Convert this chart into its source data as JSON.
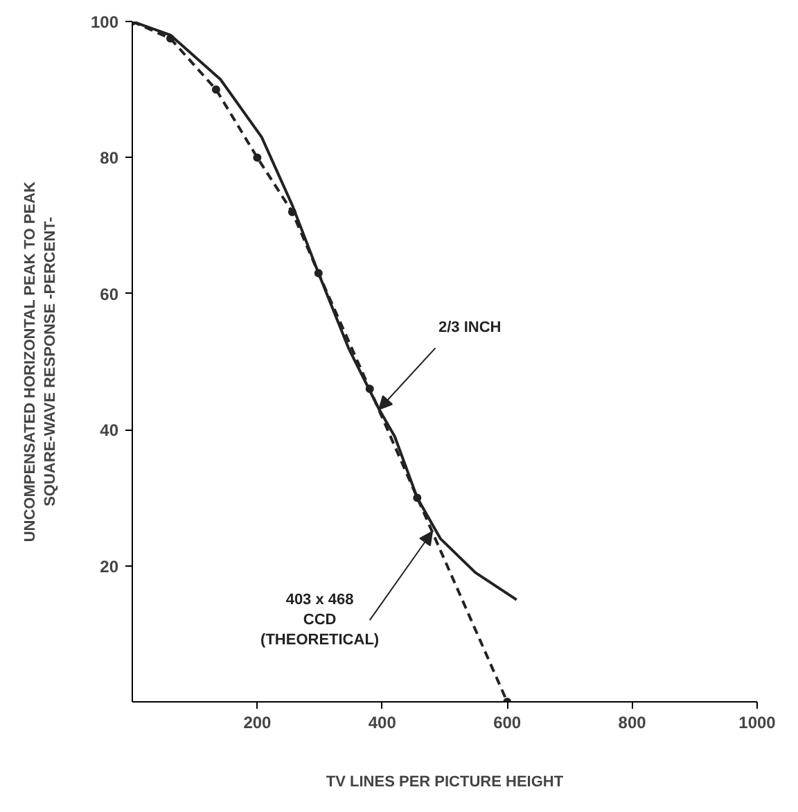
{
  "chart_data": {
    "type": "line",
    "xlabel": "TV LINES PER PICTURE HEIGHT",
    "ylabel": "UNCOMPENSATED HORIZONTAL PEAK TO PEAK\nSQUARE-WAVE RESPONSE -PERCENT-",
    "xlim": [
      0,
      1000
    ],
    "ylim": [
      0,
      100
    ],
    "xticks": [
      200,
      400,
      600,
      800,
      1000
    ],
    "yticks": [
      20,
      40,
      60,
      80,
      100
    ],
    "grid": false,
    "series": [
      {
        "color": "#222222",
        "line_style": "solid",
        "marker": "none",
        "x": [
          0,
          61,
          141,
          207,
          256,
          298,
          346,
          395,
          420,
          456,
          493,
          549,
          615
        ],
        "values": [
          100,
          98,
          91.5,
          83,
          73,
          63,
          52,
          43,
          39,
          30,
          24,
          19,
          15
        ]
      },
      {
        "color": "#222222",
        "line_style": "dashed",
        "marker": "circle",
        "x": [
          0,
          61,
          134,
          200,
          256,
          298,
          380,
          456,
          600
        ],
        "values": [
          100,
          97.5,
          90,
          80,
          72,
          63,
          46,
          30,
          0
        ]
      }
    ],
    "annotations": [
      {
        "text": "2/3 INCH",
        "x": 395,
        "y": 43
      },
      {
        "text": "403 x 468\nCCD\n(THEORETICAL)",
        "x": 480,
        "y": 25
      }
    ]
  }
}
